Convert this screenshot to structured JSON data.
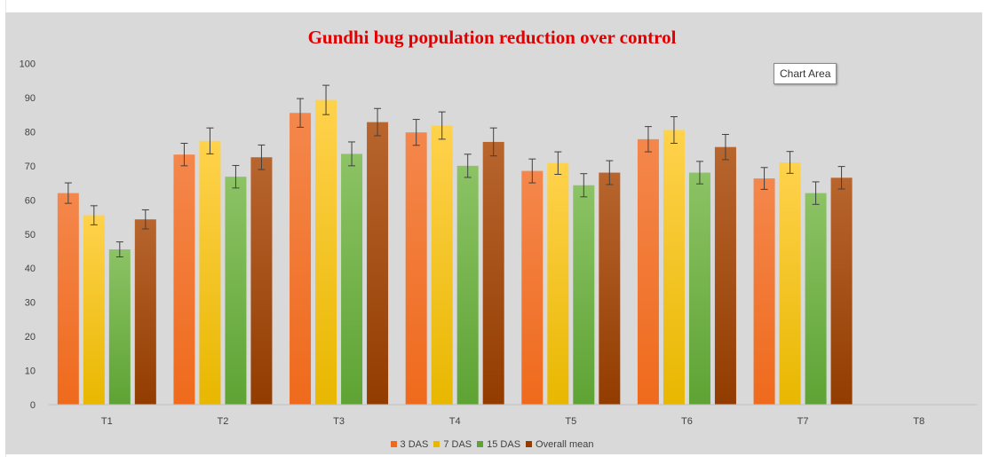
{
  "tooltip": "Chart Area",
  "colors": {
    "3 DAS": [
      "#f4874c",
      "#ef6a1c"
    ],
    "7 DAS": [
      "#ffd24d",
      "#e8b700"
    ],
    "15 DAS": [
      "#8cc365",
      "#5ea334"
    ],
    "Overall mean": [
      "#b8652e",
      "#923c00"
    ],
    "background": "#d9d9d9",
    "title": "#e00000"
  },
  "chart_data": {
    "type": "bar",
    "title": "Gundhi bug population reduction over control",
    "xlabel": "",
    "ylabel": "",
    "ylim": [
      0,
      100
    ],
    "yticks": [
      0,
      10,
      20,
      30,
      40,
      50,
      60,
      70,
      80,
      90,
      100
    ],
    "categories": [
      "T1",
      "T2",
      "T3",
      "T4",
      "T5",
      "T6",
      "T7",
      "T8"
    ],
    "legend_position": "bottom",
    "grid": false,
    "series": [
      {
        "name": "3 DAS",
        "values": [
          62,
          73.3,
          85.5,
          79.8,
          68.5,
          77.8,
          66.3,
          0
        ],
        "errors": [
          3,
          3.3,
          4.2,
          3.8,
          3.5,
          3.7,
          3.2,
          0
        ]
      },
      {
        "name": "7 DAS",
        "values": [
          55.5,
          77.3,
          89.3,
          81.8,
          70.8,
          80.5,
          71,
          0
        ],
        "errors": [
          2.8,
          3.8,
          4.3,
          4,
          3.3,
          3.9,
          3.2,
          0
        ]
      },
      {
        "name": "15 DAS",
        "values": [
          45.5,
          66.8,
          73.5,
          70,
          64.3,
          68,
          62,
          0
        ],
        "errors": [
          2.2,
          3.3,
          3.5,
          3.4,
          3.4,
          3.3,
          3.3,
          0
        ]
      },
      {
        "name": "Overall mean",
        "values": [
          54.3,
          72.5,
          82.8,
          77,
          68,
          75.5,
          66.5,
          0
        ],
        "errors": [
          2.8,
          3.6,
          4,
          4.1,
          3.5,
          3.7,
          3.3,
          0
        ]
      }
    ]
  }
}
